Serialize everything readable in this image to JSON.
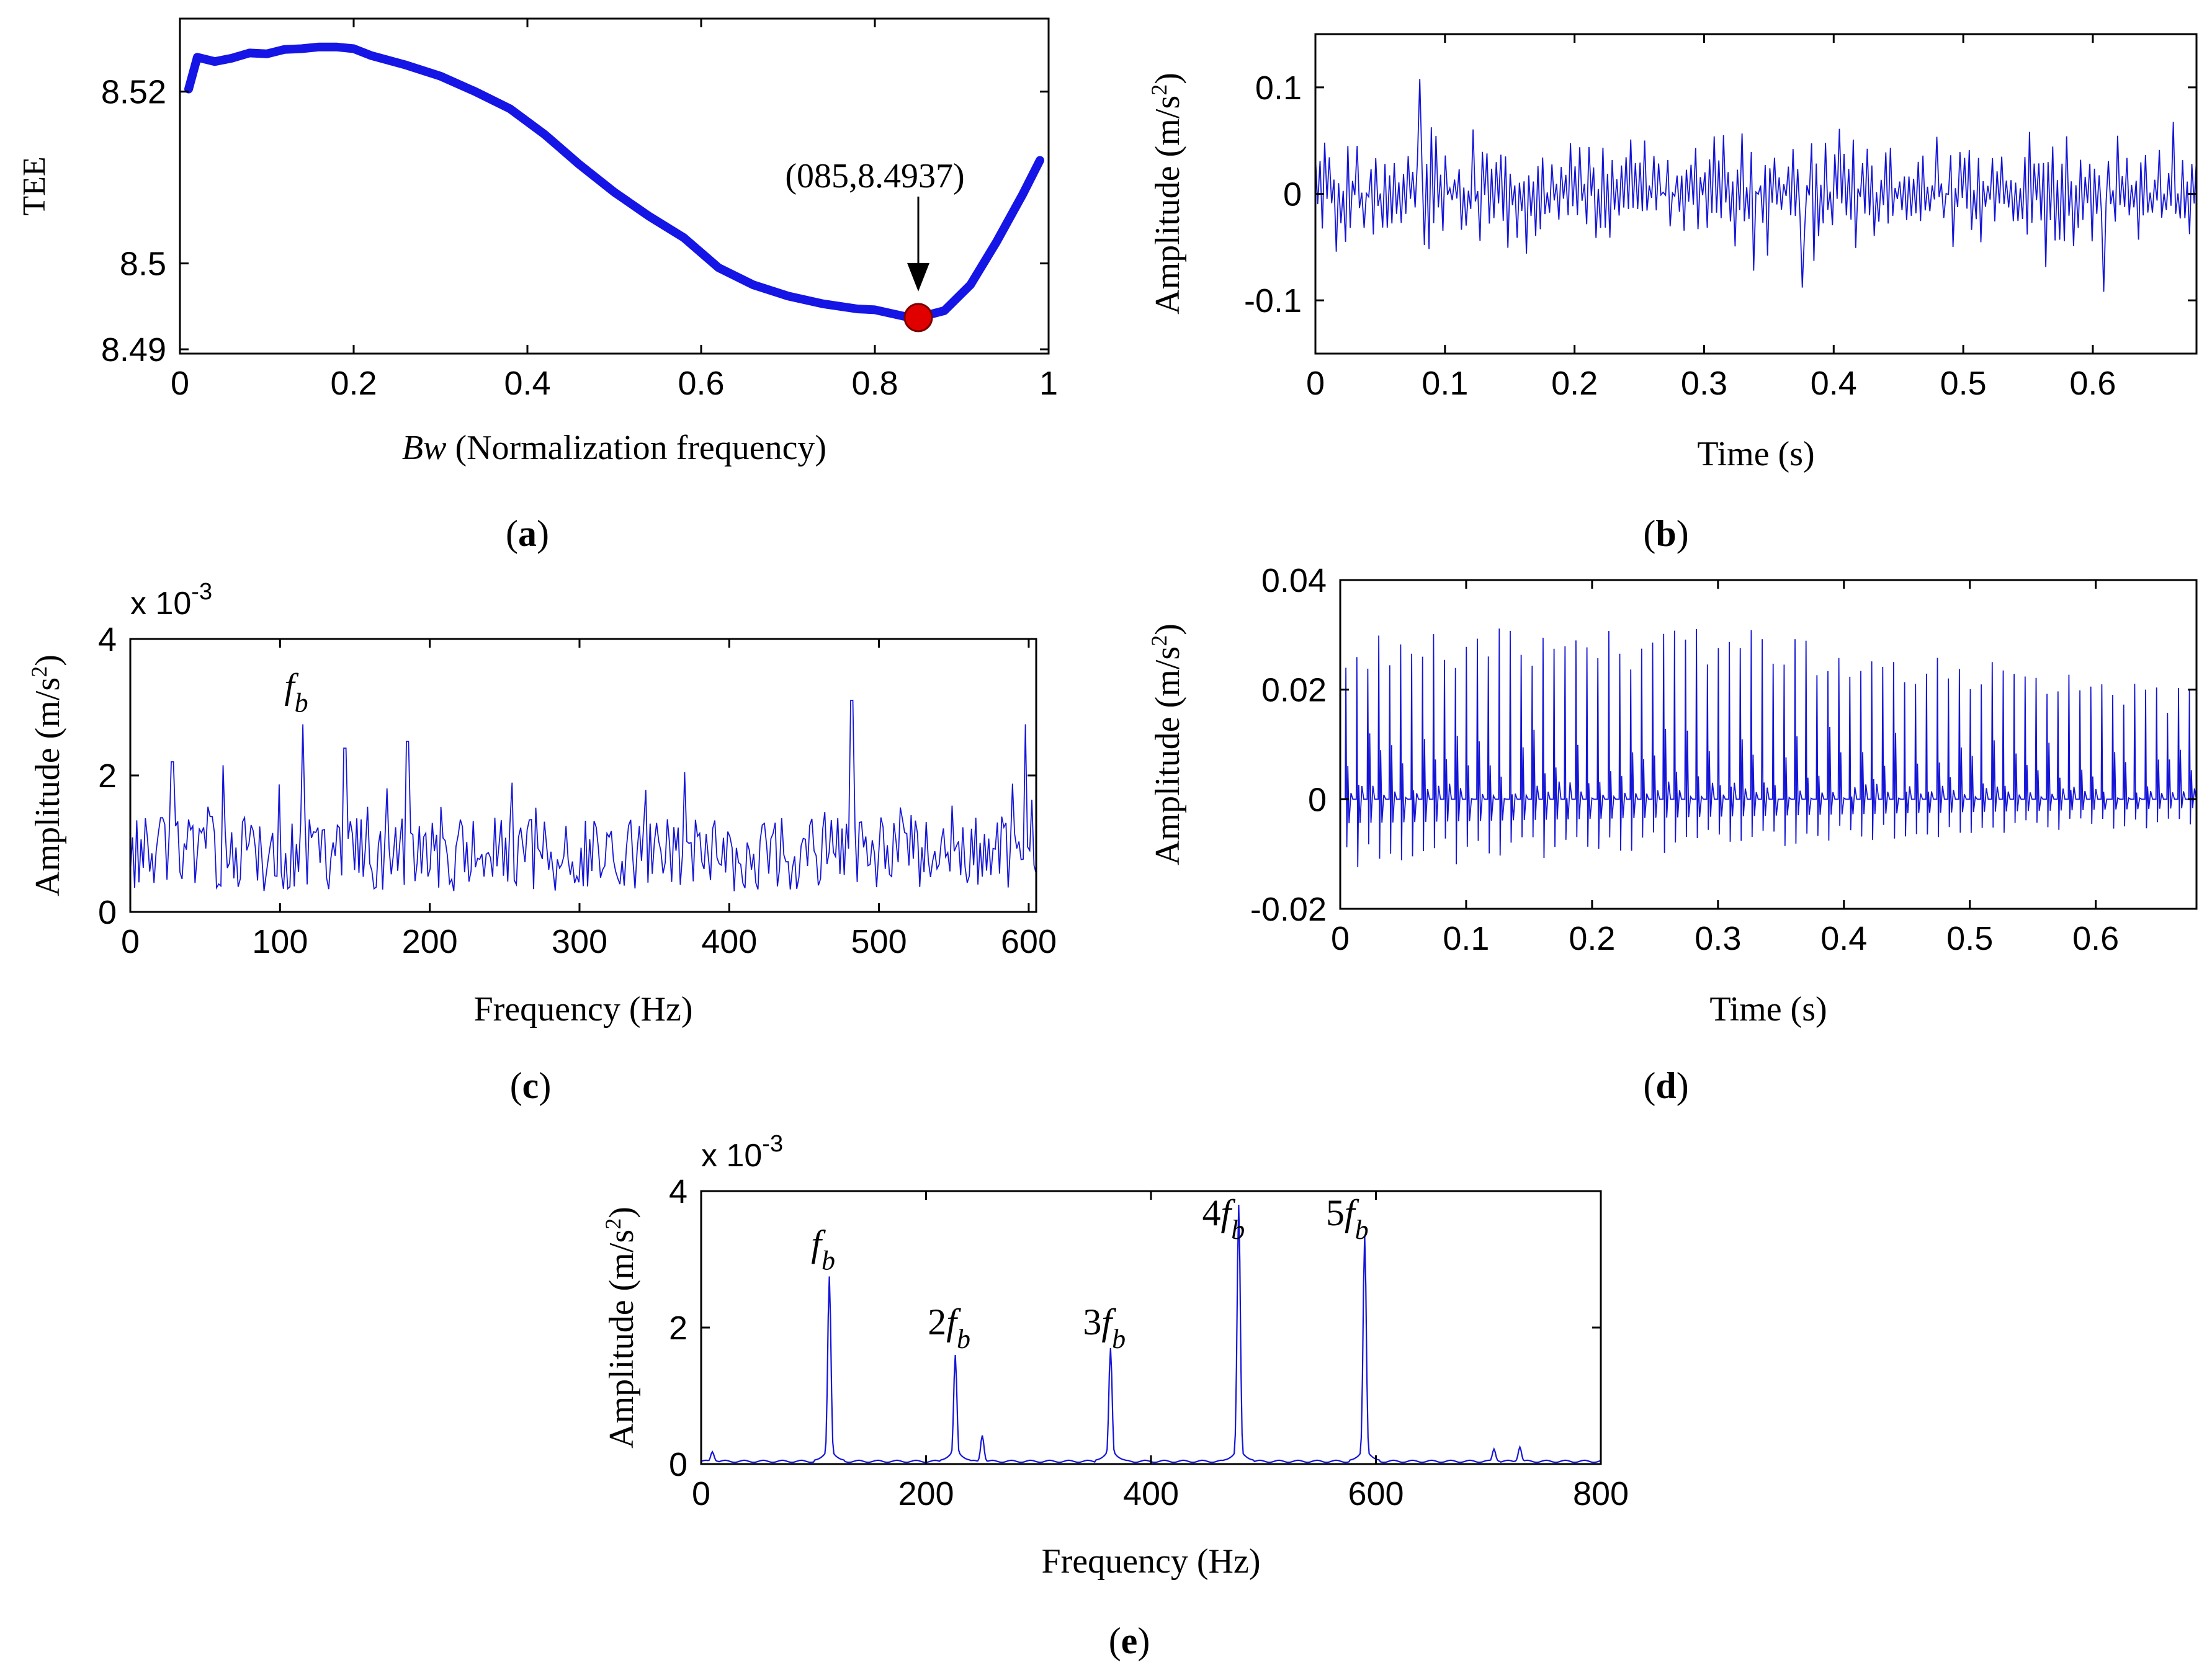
{
  "colors": {
    "signal": "#1515d8",
    "curve": "#1515e6",
    "marker": "#e00000",
    "axis": "#000000"
  },
  "panels": {
    "a": {
      "caption": "(a)",
      "caption_letter": "a"
    },
    "b": {
      "caption": "(b)",
      "caption_letter": "b"
    },
    "c": {
      "caption": "(c)",
      "caption_letter": "c"
    },
    "d": {
      "caption": "(d)",
      "caption_letter": "d"
    },
    "e": {
      "caption": "(e)",
      "caption_letter": "e"
    }
  },
  "chart_data": [
    {
      "id": "a",
      "type": "line",
      "xlabel_italic": "Bw",
      "xlabel_rest": " (Normalization frequency)",
      "ylabel": "TEE",
      "xlim": [
        0,
        1
      ],
      "ylim": [
        8.4895,
        8.5285
      ],
      "xticks": [
        "0",
        "0.2",
        "0.4",
        "0.6",
        "0.8",
        "1"
      ],
      "yticks": [
        "8.49",
        "8.5",
        "8.52"
      ],
      "ytick_values": [
        8.49,
        8.5,
        8.52
      ],
      "grid": false,
      "x": [
        0.01,
        0.02,
        0.04,
        0.06,
        0.08,
        0.1,
        0.12,
        0.14,
        0.16,
        0.18,
        0.2,
        0.22,
        0.26,
        0.3,
        0.34,
        0.38,
        0.42,
        0.46,
        0.5,
        0.54,
        0.58,
        0.62,
        0.66,
        0.7,
        0.74,
        0.78,
        0.8,
        0.84,
        0.85,
        0.88,
        0.91,
        0.94,
        0.97,
        0.99
      ],
      "y": [
        8.5203,
        8.524,
        8.5235,
        8.5239,
        8.5245,
        8.5244,
        8.5249,
        8.525,
        8.5252,
        8.5252,
        8.525,
        8.5242,
        8.5231,
        8.5218,
        8.52,
        8.518,
        8.515,
        8.5115,
        8.5083,
        8.5055,
        8.503,
        8.4995,
        8.4975,
        8.4962,
        8.4953,
        8.4947,
        8.4946,
        8.4937,
        8.4937,
        8.4945,
        8.4975,
        8.5025,
        8.508,
        8.512
      ],
      "highlight": {
        "x": 0.85,
        "y": 8.4937,
        "label": "(085,8.4937)"
      }
    },
    {
      "id": "b",
      "type": "line",
      "xlabel": "Time (s)",
      "ylabel": "Amplitude (m/s",
      "ylabel_sup": "2",
      "ylabel_end": ")",
      "xlim": [
        0,
        0.68
      ],
      "ylim": [
        -0.15,
        0.15
      ],
      "xticks": [
        "0",
        "0.1",
        "0.2",
        "0.3",
        "0.4",
        "0.5",
        "0.6"
      ],
      "yticks": [
        "-0.1",
        "0",
        "0.1"
      ],
      "ytick_values": [
        -0.1,
        0,
        0.1
      ],
      "grid": false,
      "signal": {
        "kind": "noise",
        "samples": 380,
        "envelope": [
          [
            0,
            0.055
          ],
          [
            0.68,
            0.06
          ]
        ],
        "peak_max": 0.108,
        "peak_min": -0.092,
        "seed": 7
      }
    },
    {
      "id": "c",
      "type": "line",
      "xlabel": "Frequency (Hz)",
      "ylabel": "Amplitude (m/s",
      "ylabel_sup": "2",
      "ylabel_end": ")",
      "scale_label": "x 10",
      "scale_exp": "-3",
      "xlim": [
        0,
        605
      ],
      "ylim": [
        0,
        4
      ],
      "xticks": [
        "0",
        "100",
        "200",
        "300",
        "400",
        "500",
        "600"
      ],
      "yticks": [
        "0",
        "2",
        "4"
      ],
      "ytick_values": [
        0,
        2,
        4
      ],
      "grid": false,
      "peaks": [
        {
          "x": 115,
          "y": 2.75
        },
        {
          "x": 143,
          "y": 2.4
        },
        {
          "x": 185,
          "y": 2.5
        },
        {
          "x": 28,
          "y": 2.2
        },
        {
          "x": 62,
          "y": 2.15
        },
        {
          "x": 370,
          "y": 2.05
        },
        {
          "x": 482,
          "y": 3.1
        },
        {
          "x": 598,
          "y": 2.75
        }
      ],
      "annotations": [
        {
          "x": 115,
          "y": 2.95,
          "text": "f",
          "sub": "b"
        }
      ],
      "signal": {
        "kind": "spectrum-noise",
        "samples": 420,
        "baseline": 0.85,
        "spread": 0.55,
        "seed": 13
      }
    },
    {
      "id": "d",
      "type": "line",
      "xlabel": "Time (s)",
      "ylabel": "Amplitude (m/s",
      "ylabel_sup": "2",
      "ylabel_end": ")",
      "xlim": [
        0,
        0.68
      ],
      "ylim": [
        -0.02,
        0.04
      ],
      "xticks": [
        "0",
        "0.1",
        "0.2",
        "0.3",
        "0.4",
        "0.5",
        "0.6"
      ],
      "yticks": [
        "-0.02",
        "0",
        "0.02",
        "0.04"
      ],
      "ytick_values": [
        -0.02,
        0,
        0.02,
        0.04
      ],
      "grid": false,
      "signal": {
        "kind": "impulses",
        "period": 0.0087,
        "amp_start": 0.034,
        "amp_end": 0.02,
        "neg_start": -0.011,
        "neg_end": -0.004,
        "seed": 21
      }
    },
    {
      "id": "e",
      "type": "line",
      "xlabel": "Frequency (Hz)",
      "ylabel": "Amplitude (m/s",
      "ylabel_sup": "2",
      "ylabel_end": ")",
      "scale_label": "x 10",
      "scale_exp": "-3",
      "xlim": [
        0,
        800
      ],
      "ylim": [
        0,
        4
      ],
      "xticks": [
        "0",
        "200",
        "400",
        "600",
        "800"
      ],
      "yticks": [
        "0",
        "2",
        "4"
      ],
      "ytick_values": [
        0,
        2,
        4
      ],
      "grid": false,
      "peaks": [
        {
          "x": 114,
          "y": 2.75
        },
        {
          "x": 226,
          "y": 1.6
        },
        {
          "x": 250,
          "y": 0.42
        },
        {
          "x": 364,
          "y": 1.7
        },
        {
          "x": 478,
          "y": 3.8
        },
        {
          "x": 590,
          "y": 3.35
        },
        {
          "x": 705,
          "y": 0.22
        },
        {
          "x": 728,
          "y": 0.25
        },
        {
          "x": 10,
          "y": 0.18
        }
      ],
      "annotations": [
        {
          "x": 114,
          "y": 3.05,
          "prefix": "",
          "text": "f",
          "sub": "b"
        },
        {
          "x": 226,
          "y": 1.9,
          "prefix": "2",
          "text": "f",
          "sub": "b"
        },
        {
          "x": 364,
          "y": 1.9,
          "prefix": "3",
          "text": "f",
          "sub": "b"
        },
        {
          "x": 470,
          "y": 3.5,
          "prefix": "4",
          "text": "f",
          "sub": "b"
        },
        {
          "x": 580,
          "y": 3.5,
          "prefix": "5",
          "text": "f",
          "sub": "b"
        }
      ],
      "signal": {
        "kind": "clean-spectrum",
        "baseline": 0.04
      }
    }
  ]
}
